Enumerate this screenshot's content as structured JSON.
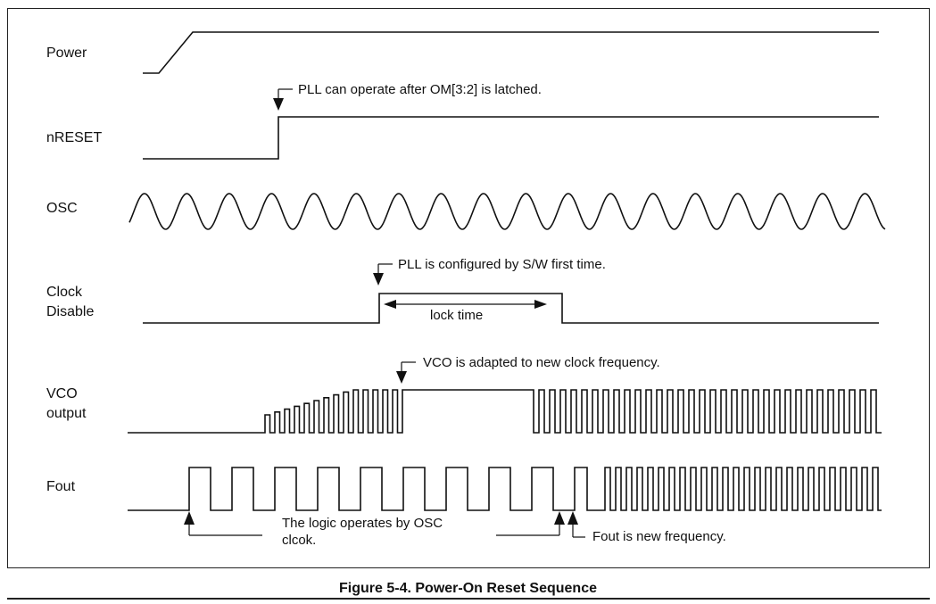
{
  "signals": {
    "power": "Power",
    "nreset": "nRESET",
    "osc": "OSC",
    "clock_disable": [
      "Clock",
      "Disable"
    ],
    "vco_output": [
      "VCO",
      "output"
    ],
    "fout": "Fout"
  },
  "annotations": {
    "pll_operate": "PLL can operate after OM[3:2] is latched.",
    "pll_configured": "PLL is configured by S/W first time.",
    "lock_time": "lock time",
    "vco_adapted": "VCO is adapted to new clock frequency.",
    "logic_osc": [
      "The logic operates by OSC",
      "clcok."
    ],
    "fout_new": "Fout is new frequency."
  },
  "caption": "Figure 5-4. Power-On Reset Sequence"
}
